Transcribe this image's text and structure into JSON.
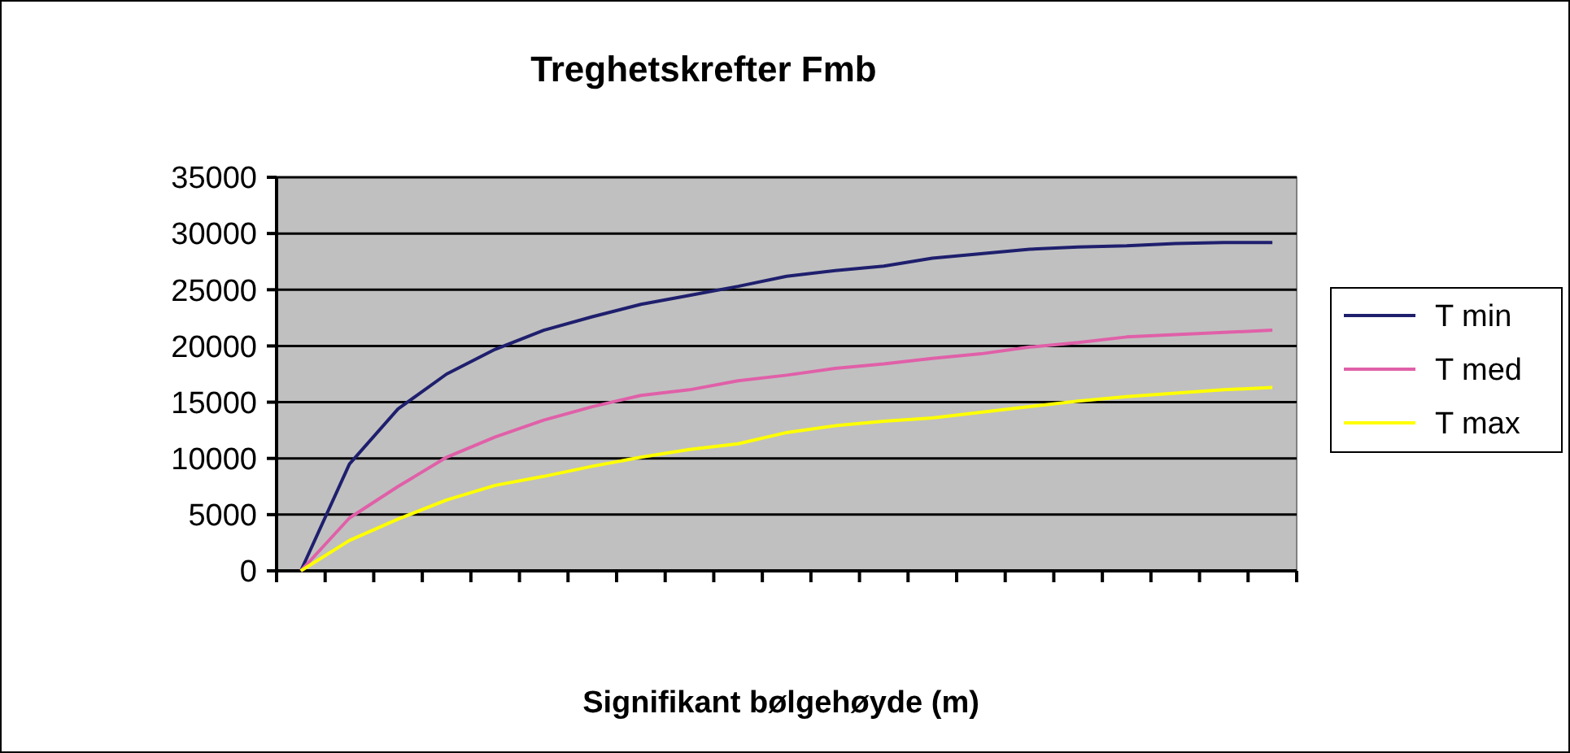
{
  "chart_data": {
    "type": "line",
    "title": "Treghetskrefter Fmb",
    "xlabel": "Signifikant bølgehøyde (m)",
    "categories": [
      null,
      null,
      null,
      null,
      null,
      null,
      null,
      null,
      null,
      null,
      null,
      null,
      null,
      null,
      null,
      null,
      null,
      null,
      null,
      null,
      null
    ],
    "series": [
      {
        "name": "T min",
        "color": "#1f1f6e",
        "values": [
          0,
          9500,
          14400,
          17500,
          19700,
          21400,
          22600,
          23700,
          24500,
          25300,
          26200,
          26700,
          27100,
          27800,
          28200,
          28600,
          28800,
          28900,
          29100,
          29200,
          29200
        ]
      },
      {
        "name": "T med",
        "color": "#e060a8",
        "values": [
          0,
          4700,
          7500,
          10100,
          11900,
          13400,
          14600,
          15600,
          16100,
          16900,
          17400,
          18000,
          18400,
          18900,
          19300,
          19900,
          20300,
          20800,
          21000,
          21200,
          21400
        ]
      },
      {
        "name": "T max",
        "color": "#ffff00",
        "values": [
          0,
          2700,
          4600,
          6300,
          7600,
          8400,
          9300,
          10100,
          10800,
          11300,
          12300,
          12900,
          13300,
          13600,
          14100,
          14600,
          15100,
          15500,
          15800,
          16100,
          16300
        ]
      }
    ],
    "ylim": [
      0,
      35000
    ],
    "yticks": [
      0,
      5000,
      10000,
      15000,
      20000,
      25000,
      30000,
      35000
    ],
    "grid": "y",
    "legend": "right",
    "marker": "none",
    "line_style": "solid"
  }
}
